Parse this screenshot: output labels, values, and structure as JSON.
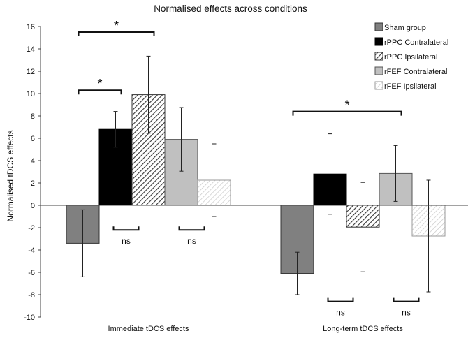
{
  "chart_data": {
    "type": "bar",
    "title": "Normalised effects across conditions",
    "xlabel": "",
    "ylabel": "Normalised tDCS effects",
    "ylim": [
      -10,
      16
    ],
    "yticks": [
      -10,
      -8,
      -6,
      -4,
      -2,
      0,
      2,
      4,
      6,
      8,
      10,
      12,
      14,
      16
    ],
    "categories": [
      "Immediate tDCS effects",
      "Long-term tDCS effects"
    ],
    "series": [
      {
        "name": "Sham group",
        "values": [
          -3.4,
          -6.1
        ],
        "error": [
          3.0,
          1.9
        ],
        "color": "#808080",
        "pattern": "solid-dark"
      },
      {
        "name": "rPPC Contralateral",
        "values": [
          6.8,
          2.8
        ],
        "error": [
          1.6,
          3.6
        ],
        "color": "#000000",
        "pattern": "solid"
      },
      {
        "name": "rPPC Ipsilateral",
        "values": [
          9.9,
          -1.95
        ],
        "error": [
          3.45,
          4.0
        ],
        "color": "#444444",
        "pattern": "hatch"
      },
      {
        "name": "rFEF Contralateral",
        "values": [
          5.9,
          2.85
        ],
        "error": [
          2.85,
          2.5
        ],
        "color": "#c0c0c0",
        "pattern": "solid-light"
      },
      {
        "name": "rFEF Ipsilateral",
        "values": [
          2.25,
          -2.75
        ],
        "error": [
          3.25,
          5.0
        ],
        "color": "#bbbbbb",
        "pattern": "light-hatch"
      }
    ],
    "legend_position": "top-right",
    "annotations": {
      "significance": [
        {
          "label": "*",
          "group": 0,
          "from_series": 0,
          "to_series": 2,
          "y": 15.5
        },
        {
          "label": "*",
          "group": 0,
          "from_series": 0,
          "to_series": 1,
          "y": 10.3
        },
        {
          "label": "*",
          "group": 1,
          "from_series": 0,
          "to_series": 3,
          "y": 8.4
        }
      ],
      "nonsignificant": [
        {
          "label": "ns",
          "group": 0,
          "from_series": 1,
          "to_series": 2,
          "y": -2.2
        },
        {
          "label": "ns",
          "group": 0,
          "from_series": 3,
          "to_series": 4,
          "y": -2.2
        },
        {
          "label": "ns",
          "group": 1,
          "from_series": 1,
          "to_series": 2,
          "y": -8.6
        },
        {
          "label": "ns",
          "group": 1,
          "from_series": 3,
          "to_series": 4,
          "y": -8.6
        }
      ]
    }
  }
}
